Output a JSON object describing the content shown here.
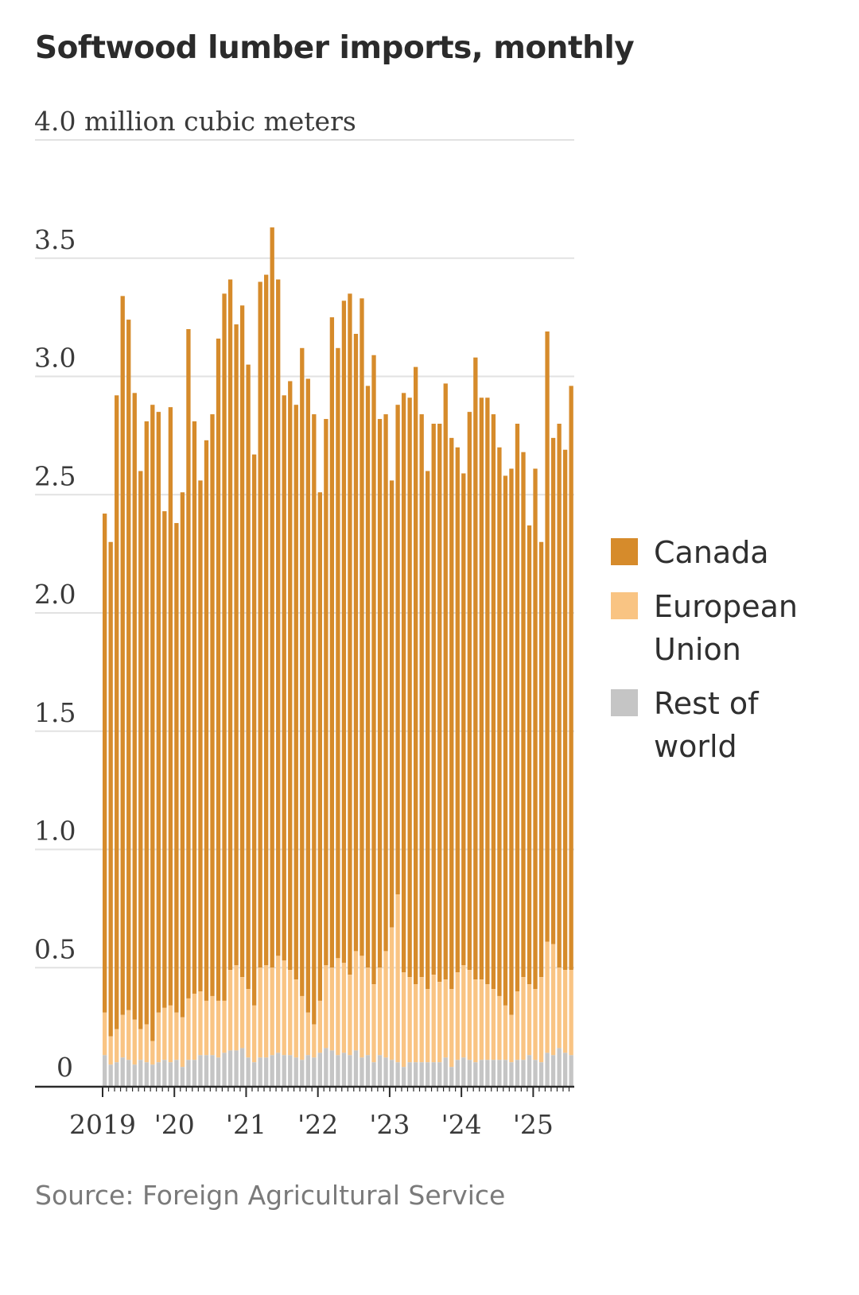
{
  "chart_data": {
    "type": "bar",
    "stacked": true,
    "title": "Softwood lumber imports, monthly",
    "ylabel": "million cubic meters",
    "ylim": [
      0,
      4.0
    ],
    "yticks": [
      0,
      0.5,
      1.0,
      1.5,
      2.0,
      2.5,
      3.0,
      3.5,
      4.0
    ],
    "ytick_labels": [
      "0",
      "0.5",
      "1.0",
      "1.5",
      "2.0",
      "2.5",
      "3.0",
      "3.5",
      "4.0 million cubic meters"
    ],
    "xtick_labels": [
      "2019",
      "'20",
      "'21",
      "'22",
      "'23",
      "'24",
      "'25"
    ],
    "start_month": "2019-01",
    "total": [
      2.42,
      2.3,
      2.92,
      3.34,
      3.24,
      2.93,
      2.6,
      2.81,
      2.88,
      2.85,
      2.43,
      2.87,
      2.38,
      2.51,
      3.2,
      2.81,
      2.56,
      2.73,
      2.84,
      3.16,
      3.35,
      3.41,
      3.22,
      3.3,
      3.05,
      2.67,
      3.4,
      3.43,
      3.63,
      3.41,
      2.92,
      2.98,
      2.88,
      3.12,
      2.99,
      2.84,
      2.51,
      2.82,
      3.25,
      3.12,
      3.32,
      3.35,
      3.18,
      3.33,
      2.96,
      3.09,
      2.82,
      2.84,
      2.56,
      2.88,
      2.93,
      2.91,
      3.04,
      2.84,
      2.6,
      2.8,
      2.8,
      2.97,
      2.74,
      2.7,
      2.59,
      2.85,
      3.08,
      2.91,
      2.91,
      2.84,
      2.7,
      2.58,
      2.61,
      2.8,
      2.68,
      2.37,
      2.61,
      2.3,
      3.19,
      2.74,
      2.8,
      2.69,
      2.96
    ],
    "series": [
      {
        "name": "Canada",
        "color": "#d68b2b"
      },
      {
        "name": "European Union",
        "color": "#f9c483"
      },
      {
        "name": "Rest of world",
        "color": "#c5c5c5"
      }
    ],
    "eu_plus_rest": [
      0.31,
      0.21,
      0.24,
      0.3,
      0.32,
      0.28,
      0.24,
      0.26,
      0.19,
      0.31,
      0.33,
      0.34,
      0.31,
      0.29,
      0.37,
      0.39,
      0.4,
      0.36,
      0.38,
      0.36,
      0.36,
      0.49,
      0.51,
      0.46,
      0.41,
      0.34,
      0.5,
      0.51,
      0.5,
      0.55,
      0.53,
      0.49,
      0.45,
      0.38,
      0.31,
      0.26,
      0.36,
      0.51,
      0.5,
      0.54,
      0.52,
      0.47,
      0.57,
      0.55,
      0.5,
      0.43,
      0.5,
      0.57,
      0.67,
      0.81,
      0.48,
      0.46,
      0.43,
      0.46,
      0.41,
      0.47,
      0.44,
      0.45,
      0.41,
      0.48,
      0.51,
      0.49,
      0.45,
      0.45,
      0.43,
      0.41,
      0.38,
      0.34,
      0.3,
      0.4,
      0.46,
      0.43,
      0.41,
      0.46,
      0.61,
      0.6,
      0.5,
      0.49,
      0.49
    ],
    "rest": [
      0.13,
      0.09,
      0.1,
      0.12,
      0.11,
      0.09,
      0.11,
      0.1,
      0.09,
      0.1,
      0.11,
      0.1,
      0.11,
      0.08,
      0.11,
      0.11,
      0.13,
      0.13,
      0.13,
      0.12,
      0.14,
      0.15,
      0.15,
      0.16,
      0.12,
      0.1,
      0.12,
      0.12,
      0.13,
      0.14,
      0.13,
      0.13,
      0.12,
      0.11,
      0.13,
      0.12,
      0.14,
      0.16,
      0.15,
      0.13,
      0.14,
      0.13,
      0.15,
      0.12,
      0.13,
      0.1,
      0.13,
      0.12,
      0.11,
      0.1,
      0.08,
      0.1,
      0.1,
      0.1,
      0.1,
      0.1,
      0.1,
      0.12,
      0.08,
      0.11,
      0.12,
      0.11,
      0.1,
      0.11,
      0.11,
      0.11,
      0.11,
      0.11,
      0.1,
      0.11,
      0.11,
      0.13,
      0.11,
      0.1,
      0.14,
      0.13,
      0.16,
      0.14,
      0.13
    ],
    "source": "Source: Foreign Agricultural Service"
  },
  "legend": {
    "canada": "Canada",
    "eu": "European Union",
    "rest": "Rest of world"
  }
}
